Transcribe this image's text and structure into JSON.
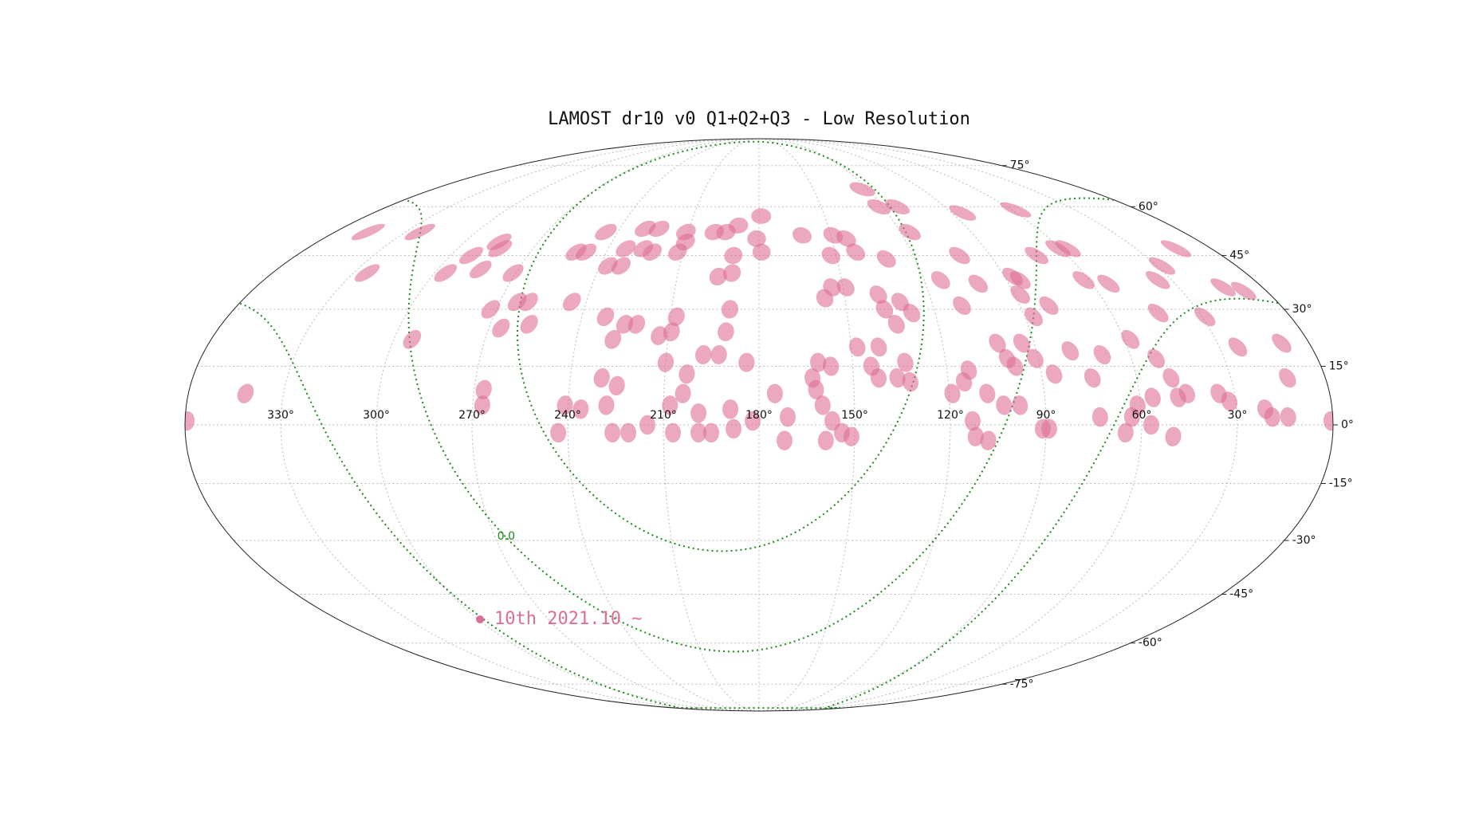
{
  "chart_data": {
    "type": "scatter",
    "projection": "mollweide",
    "title": "LAMOST dr10 v0 Q1+Q2+Q3 - Low Resolution",
    "xlim": [
      360,
      0
    ],
    "ylim": [
      -90,
      90
    ],
    "xticks": [
      {
        "value": 330,
        "label": "330°"
      },
      {
        "value": 300,
        "label": "300°"
      },
      {
        "value": 270,
        "label": "270°"
      },
      {
        "value": 240,
        "label": "240°"
      },
      {
        "value": 210,
        "label": "210°"
      },
      {
        "value": 180,
        "label": "180°"
      },
      {
        "value": 150,
        "label": "150°"
      },
      {
        "value": 120,
        "label": "120°"
      },
      {
        "value": 90,
        "label": "90°"
      },
      {
        "value": 60,
        "label": "60°"
      },
      {
        "value": 30,
        "label": "30°"
      }
    ],
    "yticks": [
      {
        "value": -75,
        "label": "-75°"
      },
      {
        "value": -60,
        "label": "-60°"
      },
      {
        "value": -45,
        "label": "-45°"
      },
      {
        "value": -30,
        "label": "-30°"
      },
      {
        "value": -15,
        "label": "-15°"
      },
      {
        "value": 0,
        "label": "0°"
      },
      {
        "value": 15,
        "label": "15°"
      },
      {
        "value": 30,
        "label": "30°"
      },
      {
        "value": 45,
        "label": "45°"
      },
      {
        "value": 60,
        "label": "60°"
      },
      {
        "value": 75,
        "label": "75°"
      }
    ],
    "grid": true,
    "galactic_b": [
      0,
      30,
      -30
    ],
    "galactic_label": "0.0",
    "legend": "lower left",
    "series": [
      {
        "name": "10th 2021.10 ~",
        "color": "#dd6e95",
        "x": [
          175,
          171,
          172,
          182,
          189,
          188,
          195,
          199,
          199,
          207,
          208,
          204,
          203,
          210,
          198,
          215,
          221,
          226,
          228,
          225,
          230,
          236,
          241,
          243,
          267,
          267,
          342,
          359.5,
          0.5,
          162,
          161,
          163,
          157,
          160,
          157,
          159,
          151,
          154,
          144,
          142,
          132,
          133,
          136,
          148,
          141,
          119,
          115,
          113,
          108,
          113,
          112,
          108,
          103,
          98,
          91,
          89,
          100,
          98,
          91,
          86,
          102,
          94,
          79,
          74,
          73,
          69,
          65,
          63,
          57,
          61,
          56,
          50,
          48,
          45,
          49,
          52,
          35,
          32,
          21,
          19,
          14,
          12,
          58,
          24,
          9,
          190,
          191,
          193,
          184,
          209,
          213,
          208,
          221,
          225,
          228,
          232,
          257,
          266,
          272,
          264,
          260,
          245,
          294,
          138,
          131,
          134,
          137,
          128,
          157,
          154,
          149,
          110,
          80,
          87,
          44,
          29,
          88,
          85,
          87,
          101,
          114,
          62,
          54,
          35,
          14,
          8,
          131,
          142,
          152,
          162,
          149,
          144,
          181,
          190,
          190,
          195,
          179,
          179,
          189,
          194,
          199,
          211,
          210,
          212,
          223,
          229,
          222,
          226,
          233,
          232,
          237,
          245,
          248,
          252,
          271,
          284,
          296,
          292,
          286,
          283,
          325,
          324,
          85,
          72,
          61,
          57,
          28,
          14,
          58,
          102,
          122,
          113,
          116,
          123,
          346
        ],
        "y": [
          8,
          2,
          -4,
          1,
          4,
          -1,
          -2,
          -2,
          3,
          -2,
          5,
          8,
          13,
          16,
          18,
          0,
          -2,
          -2,
          5,
          10,
          12,
          4,
          5,
          -2,
          5,
          9,
          8,
          1,
          1,
          9,
          16,
          12,
          15,
          5,
          1,
          -4,
          -3,
          -2,
          15,
          12,
          11,
          16,
          12,
          20,
          20,
          8,
          11,
          14,
          8,
          1,
          -3,
          -4,
          5,
          5,
          -1,
          -1,
          17,
          15,
          17,
          13,
          21,
          21,
          19,
          12,
          2,
          18,
          -2,
          2,
          0,
          5,
          7,
          -3,
          7,
          8,
          12,
          17,
          8,
          6,
          4,
          2,
          2,
          12,
          22,
          20,
          21,
          30,
          24,
          18,
          16,
          24,
          23,
          28,
          26,
          26,
          22,
          28,
          26,
          25,
          30,
          32,
          32,
          32,
          22,
          34,
          32,
          26,
          30,
          29,
          33,
          36,
          36,
          31,
          31,
          28,
          29,
          28,
          34,
          38,
          39,
          37,
          38,
          38,
          37,
          38,
          36,
          35,
          44,
          46,
          45,
          51,
          51,
          50,
          50,
          45,
          40,
          39,
          46,
          57,
          54,
          52,
          52,
          52,
          49,
          46,
          53,
          53,
          46,
          47,
          47,
          42,
          42,
          52,
          46,
          46,
          40,
          41,
          40,
          45,
          49,
          47,
          40,
          52,
          58,
          45,
          47,
          47,
          42,
          47,
          59,
          45,
          60,
          60,
          52,
          66,
          52
        ]
      }
    ]
  }
}
